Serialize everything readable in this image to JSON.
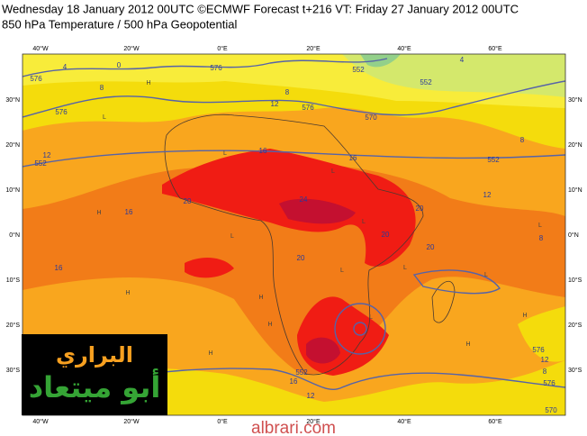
{
  "header": {
    "line1": "Wednesday 18 January 2012 00UTC ©ECMWF Forecast t+216 VT: Friday 27 January 2012 00UTC",
    "line2": "850 hPa Temperature / 500 hPa Geopotential"
  },
  "map": {
    "longitude_labels": [
      "40°W",
      "20°W",
      "0°E",
      "20°E",
      "40°E",
      "60°E"
    ],
    "latitude_labels": [
      "30°N",
      "20°N",
      "10°N",
      "0°N",
      "10°S",
      "20°S",
      "30°S"
    ],
    "contour_labels": [
      "576",
      "4",
      "0",
      "576",
      "8",
      "576",
      "552",
      "552",
      "4",
      "8",
      "12",
      "576",
      "570",
      "552",
      "8",
      "552",
      "12",
      "16",
      "16",
      "20",
      "24",
      "20",
      "12",
      "16",
      "20",
      "20",
      "16",
      "20",
      "8",
      "576",
      "12",
      "8",
      "576",
      "570",
      "552",
      "16",
      "12"
    ],
    "pressure_centers": [
      "L",
      "L",
      "H",
      "L",
      "L",
      "H",
      "L",
      "H",
      "L",
      "H",
      "H",
      "L",
      "L",
      "H",
      "L",
      "H",
      "H",
      "L"
    ]
  },
  "logo": {
    "line1": "البراري",
    "line2": "أبو ميتعاد"
  },
  "watermark": "albrari.com"
}
